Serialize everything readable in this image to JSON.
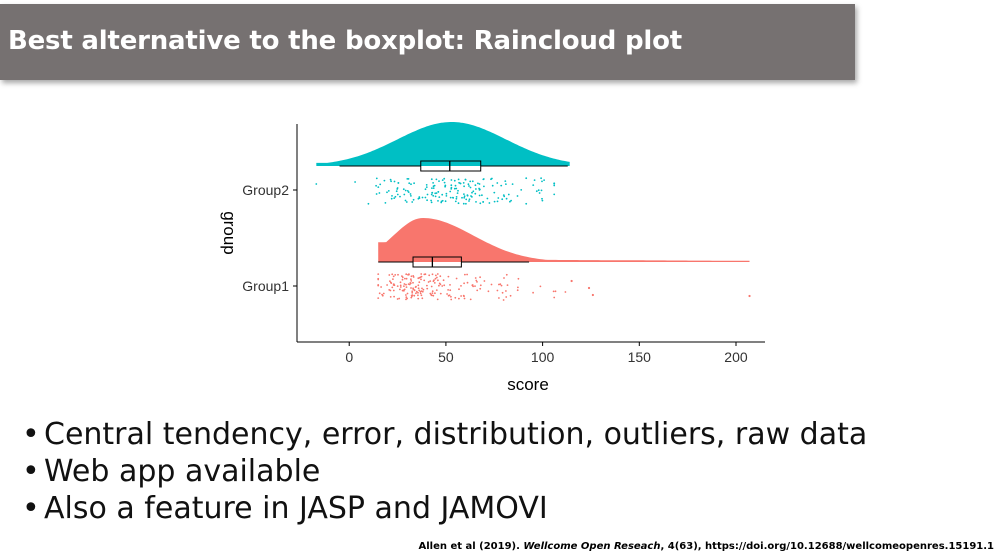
{
  "slide": {
    "title": "Best alternative to the boxplot: Raincloud plot",
    "bullets": [
      "Central tendency, error, distribution, outliers, raw data",
      "Web app available",
      "Also a feature in JASP and JAMOVI"
    ],
    "citation": {
      "prefix": "Allen et al (2019). ",
      "journal": "Wellcome Open Reseach",
      "suffix": ", 4(63), https://doi.org/10.12688/wellcomeopenres.15191.1"
    }
  },
  "chart_data": {
    "type": "raincloud",
    "xlabel": "score",
    "ylabel": "group",
    "xlim": [
      -27,
      215
    ],
    "xticks": [
      0,
      50,
      100,
      150,
      200
    ],
    "categories": [
      "Group1",
      "Group2"
    ],
    "colors": {
      "Group1": "#F8766D",
      "Group2": "#00BFC4"
    },
    "series": [
      {
        "name": "Group2",
        "color": "#00BFC4",
        "boxplot": {
          "min": -5,
          "q1": 37,
          "median": 52,
          "q3": 68,
          "max": 113
        },
        "density_range": [
          -17,
          114
        ],
        "density_peak": 53,
        "raw_range": [
          -17,
          114
        ]
      },
      {
        "name": "Group1",
        "color": "#F8766D",
        "boxplot": {
          "min": 15,
          "q1": 33,
          "median": 43,
          "q3": 58,
          "max": 93
        },
        "density_range": [
          15,
          207
        ],
        "density_peak": 38,
        "raw_range": [
          15,
          207
        ]
      }
    ]
  }
}
